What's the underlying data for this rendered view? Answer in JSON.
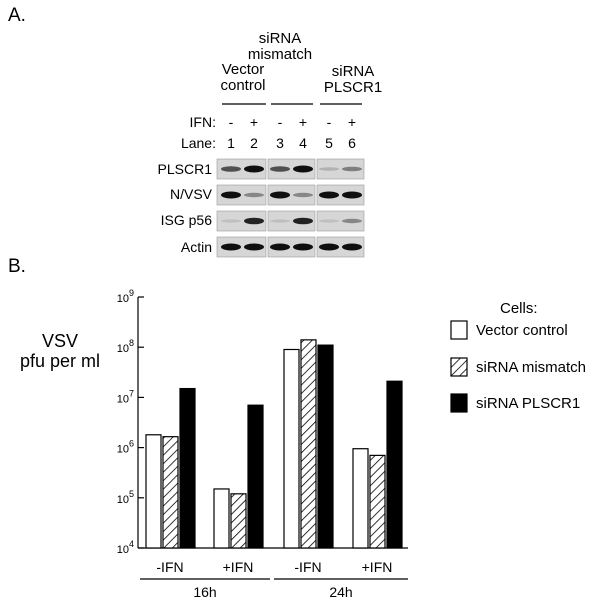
{
  "panel_a": {
    "label": "A.",
    "headers": [
      {
        "lines": [
          "Vector",
          "control"
        ]
      },
      {
        "lines": [
          "siRNA",
          "mismatch"
        ]
      },
      {
        "lines": [
          "siRNA",
          "PLSCR1"
        ]
      }
    ],
    "ifn_label": "IFN:",
    "ifn_marks": [
      "-",
      "+",
      "-",
      "+",
      "-",
      "+"
    ],
    "lane_label": "Lane:",
    "lane_numbers": [
      "1",
      "2",
      "3",
      "4",
      "5",
      "6"
    ],
    "blots": [
      {
        "label": "PLSCR1",
        "intensity": [
          0.65,
          1.0,
          0.65,
          1.0,
          0.12,
          0.4
        ]
      },
      {
        "label": "N/VSV",
        "intensity": [
          1.0,
          0.35,
          1.0,
          0.35,
          1.0,
          1.0
        ]
      },
      {
        "label": "ISG p56",
        "intensity": [
          0.05,
          0.9,
          0.05,
          0.9,
          0.05,
          0.35
        ]
      },
      {
        "label": "Actin",
        "intensity": [
          1.0,
          1.0,
          1.0,
          1.0,
          1.0,
          1.0
        ]
      }
    ]
  },
  "panel_b": {
    "label": "B.",
    "ylabel_lines": [
      "VSV",
      "pfu per ml"
    ],
    "legend_title": "Cells:"
  },
  "chart_data": {
    "type": "bar",
    "yscale": "log",
    "ylim": [
      10000,
      1000000000
    ],
    "yticks": [
      {
        "value": 10000,
        "base": "10",
        "exp": "4"
      },
      {
        "value": 100000,
        "base": "10",
        "exp": "5"
      },
      {
        "value": 1000000,
        "base": "10",
        "exp": "6"
      },
      {
        "value": 10000000,
        "base": "10",
        "exp": "7"
      },
      {
        "value": 100000000,
        "base": "10",
        "exp": "8"
      },
      {
        "value": 1000000000,
        "base": "10",
        "exp": "9"
      }
    ],
    "categories": [
      "-IFN",
      "+IFN",
      "-IFN",
      "+IFN"
    ],
    "groups": [
      {
        "label": "16h",
        "categories": [
          0,
          1
        ]
      },
      {
        "label": "24h",
        "categories": [
          2,
          3
        ]
      }
    ],
    "series": [
      {
        "name": "Vector control",
        "fill": "white",
        "values": [
          1800000,
          150000,
          90000000,
          950000
        ]
      },
      {
        "name": "siRNA mismatch",
        "fill": "hatched",
        "values": [
          1650000,
          120000,
          140000000,
          700000
        ]
      },
      {
        "name": "siRNA PLSCR1",
        "fill": "black",
        "values": [
          15000000,
          7000000,
          110000000,
          21000000
        ]
      }
    ]
  }
}
